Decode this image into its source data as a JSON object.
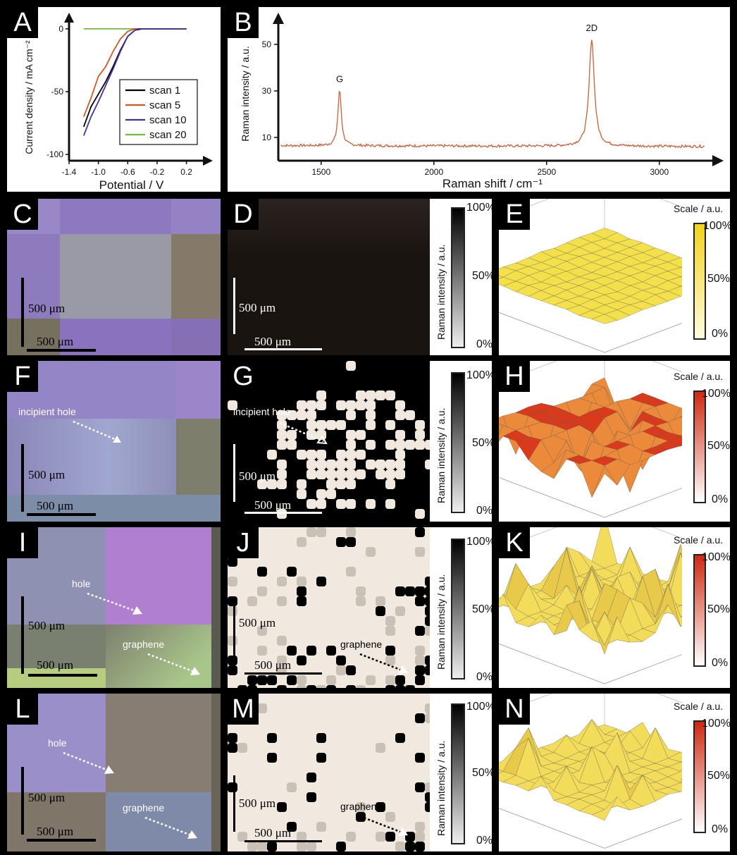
{
  "panels": {
    "A": "A",
    "B": "B",
    "C": "C",
    "D": "D",
    "E": "E",
    "F": "F",
    "G": "G",
    "H": "H",
    "I": "I",
    "J": "J",
    "K": "K",
    "L": "L",
    "M": "M",
    "N": "N"
  },
  "scale_text": "500 µm",
  "scale_text_serif": "500 μm",
  "annotations": {
    "incipient_hole": "incipient hole",
    "hole": "hole",
    "graphene": "graphene"
  },
  "raman_map_axis": {
    "title": "Raman intensity / a.u.",
    "ticks": [
      "100%",
      "50%",
      "0%"
    ]
  },
  "surface_scale": {
    "title": "Scale / a.u.",
    "ticks": [
      "100%",
      "50%",
      "0%"
    ]
  },
  "colors": {
    "scan1": "#000000",
    "scan5": "#d2582a",
    "scan10": "#4a2fa0",
    "scan20": "#6bbf3a",
    "raman": "#c8603a",
    "yellow": "#f2d21c",
    "red": "#cc2a12"
  },
  "chart_data": [
    {
      "type": "line",
      "xlabel": "Potential / V",
      "ylabel": "Current density / mA cm⁻²",
      "xlim": [
        -1.4,
        0.3
      ],
      "ylim": [
        -105,
        5
      ],
      "xticks": [
        "-1.4",
        "-1.0",
        "-0.6",
        "-0.2",
        "0.2"
      ],
      "yticks": [
        "0",
        "-50",
        "-100"
      ],
      "series": [
        {
          "name": "scan 1",
          "x": [
            -1.2,
            -1.1,
            -1.0,
            -0.9,
            -0.8,
            -0.7,
            -0.6,
            -0.5,
            -0.4,
            -0.3,
            -0.2,
            0.0,
            0.2
          ],
          "y": [
            -78,
            -62,
            -52,
            -42,
            -30,
            -17,
            -6,
            -1,
            0,
            0,
            0,
            0,
            0
          ]
        },
        {
          "name": "scan 5",
          "x": [
            -1.2,
            -1.1,
            -1.0,
            -0.9,
            -0.8,
            -0.7,
            -0.6,
            -0.55,
            -0.5,
            -0.4,
            -0.2,
            0.0,
            0.2
          ],
          "y": [
            -70,
            -55,
            -38,
            -30,
            -18,
            -8,
            -2,
            -1,
            0,
            0,
            0,
            0,
            0
          ]
        },
        {
          "name": "scan 10",
          "x": [
            -1.2,
            -1.1,
            -1.0,
            -0.9,
            -0.8,
            -0.7,
            -0.6,
            -0.5,
            -0.45,
            -0.4,
            -0.2,
            0.0,
            0.2
          ],
          "y": [
            -85,
            -70,
            -58,
            -45,
            -32,
            -18,
            -6,
            -1,
            0,
            0,
            0,
            0,
            0
          ]
        },
        {
          "name": "scan 20",
          "x": [
            -1.2,
            -1.0,
            -0.8,
            -0.6,
            -0.4,
            -0.2,
            0.0,
            0.2
          ],
          "y": [
            0,
            0,
            0,
            0,
            0,
            0,
            0,
            0
          ]
        }
      ]
    },
    {
      "type": "line",
      "xlabel": "Raman shift / cm⁻¹",
      "ylabel": "Raman intensity / a.u.",
      "xlim": [
        1310,
        3210
      ],
      "ylim": [
        0,
        60
      ],
      "xticks": [
        "1500",
        "2000",
        "2500",
        "3000"
      ],
      "yticks": [
        "10",
        "30",
        "50"
      ],
      "annotations": [
        {
          "text": "G",
          "x": 1582,
          "y": 32
        },
        {
          "text": "2D",
          "x": 2700,
          "y": 54
        }
      ],
      "peaks": [
        {
          "center": 1582,
          "height": 24,
          "width": 9
        },
        {
          "center": 2700,
          "height": 46,
          "width": 14
        }
      ],
      "baseline": 6.5
    }
  ]
}
